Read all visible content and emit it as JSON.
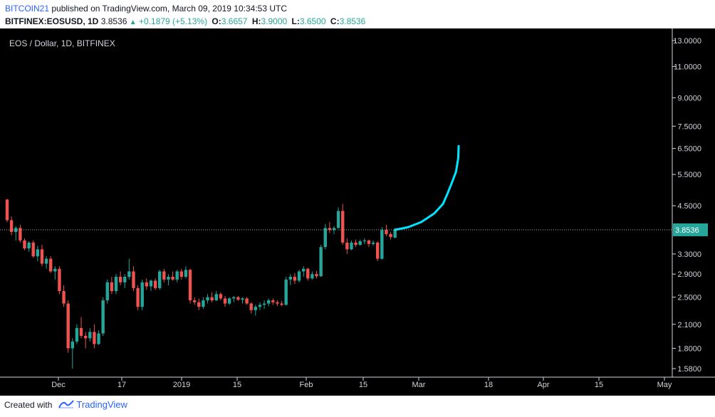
{
  "header": {
    "user": "BITCOIN21",
    "published": "published on TradingView.com, March 09, 2019 10:34:53 UTC",
    "symbol": "BITFINEX:EOSUSD, 1D",
    "last": "3.8536",
    "change": "+0.1879 (+5.13%)",
    "open_label": "O:",
    "open": "3.6657",
    "high_label": "H:",
    "high": "3.9000",
    "low_label": "L:",
    "low": "3.6500",
    "close_label": "C:",
    "close": "3.8536"
  },
  "footer": {
    "created_with": "Created with",
    "brand": "TradingView"
  },
  "colors": {
    "background": "#000000",
    "up": "#26a69a",
    "down": "#ef5350",
    "projection": "#00e5ff",
    "price_tag": "#26a69a",
    "axis_text": "#d1d4dc"
  },
  "icons": {
    "up": "up-arrow-icon",
    "logo": "tradingview-logo-icon"
  },
  "chart_data": {
    "type": "candlestick",
    "title": "EOS / Dollar, 1D, BITFINEX",
    "y_scale": "log",
    "ylim": [
      1.58,
      13.0
    ],
    "y_ticks": [
      "13.0000",
      "11.0000",
      "9.0000",
      "7.5000",
      "6.5000",
      "5.5000",
      "4.5000",
      "3.3000",
      "2.9000",
      "2.5000",
      "2.1000",
      "1.8000",
      "1.5800"
    ],
    "x_ticks": [
      "Dec",
      "17",
      "2019",
      "15",
      "Feb",
      "15",
      "Mar",
      "18",
      "Apr",
      "15",
      "May"
    ],
    "last_price": "3.8536",
    "candles": [
      [
        4.68,
        4.7,
        4.05,
        4.1
      ],
      [
        4.1,
        4.2,
        3.72,
        3.8
      ],
      [
        3.8,
        3.95,
        3.6,
        3.9
      ],
      [
        3.9,
        3.98,
        3.55,
        3.6
      ],
      [
        3.6,
        3.65,
        3.38,
        3.42
      ],
      [
        3.42,
        3.58,
        3.35,
        3.55
      ],
      [
        3.55,
        3.6,
        3.22,
        3.25
      ],
      [
        3.25,
        3.48,
        3.15,
        3.4
      ],
      [
        3.4,
        3.5,
        3.05,
        3.1
      ],
      [
        3.1,
        3.25,
        3.0,
        3.2
      ],
      [
        3.2,
        3.25,
        2.92,
        2.95
      ],
      [
        2.95,
        3.05,
        2.8,
        3.0
      ],
      [
        3.0,
        3.05,
        2.55,
        2.6
      ],
      [
        2.6,
        2.7,
        2.35,
        2.4
      ],
      [
        2.4,
        2.45,
        1.75,
        1.8
      ],
      [
        1.8,
        1.92,
        1.58,
        1.88
      ],
      [
        1.88,
        2.1,
        1.85,
        2.05
      ],
      [
        2.05,
        2.2,
        1.92,
        1.95
      ],
      [
        1.95,
        2.0,
        1.8,
        1.92
      ],
      [
        1.92,
        2.05,
        1.88,
        2.0
      ],
      [
        2.0,
        2.1,
        1.8,
        1.85
      ],
      [
        1.85,
        2.02,
        1.84,
        1.98
      ],
      [
        1.98,
        2.5,
        1.95,
        2.45
      ],
      [
        2.45,
        2.8,
        2.4,
        2.75
      ],
      [
        2.75,
        2.85,
        2.55,
        2.6
      ],
      [
        2.6,
        2.9,
        2.55,
        2.85
      ],
      [
        2.85,
        2.95,
        2.7,
        2.75
      ],
      [
        2.75,
        2.9,
        2.65,
        2.85
      ],
      [
        2.85,
        3.2,
        2.8,
        2.95
      ],
      [
        2.95,
        3.05,
        2.6,
        2.65
      ],
      [
        2.65,
        2.7,
        2.3,
        2.35
      ],
      [
        2.35,
        2.8,
        2.3,
        2.75
      ],
      [
        2.75,
        2.82,
        2.62,
        2.68
      ],
      [
        2.68,
        2.8,
        2.6,
        2.78
      ],
      [
        2.78,
        2.82,
        2.62,
        2.65
      ],
      [
        2.65,
        2.98,
        2.62,
        2.95
      ],
      [
        2.95,
        3.0,
        2.75,
        2.8
      ],
      [
        2.8,
        2.9,
        2.7,
        2.85
      ],
      [
        2.85,
        2.95,
        2.78,
        2.8
      ],
      [
        2.8,
        2.98,
        2.75,
        2.95
      ],
      [
        2.95,
        3.0,
        2.8,
        2.85
      ],
      [
        2.85,
        3.05,
        2.82,
        2.98
      ],
      [
        2.98,
        3.0,
        2.4,
        2.45
      ],
      [
        2.45,
        2.5,
        2.38,
        2.42
      ],
      [
        2.42,
        2.48,
        2.3,
        2.35
      ],
      [
        2.35,
        2.5,
        2.32,
        2.45
      ],
      [
        2.45,
        2.55,
        2.4,
        2.5
      ],
      [
        2.5,
        2.58,
        2.42,
        2.45
      ],
      [
        2.45,
        2.6,
        2.44,
        2.55
      ],
      [
        2.55,
        2.58,
        2.45,
        2.48
      ],
      [
        2.48,
        2.52,
        2.35,
        2.4
      ],
      [
        2.4,
        2.5,
        2.38,
        2.48
      ],
      [
        2.48,
        2.52,
        2.42,
        2.5
      ],
      [
        2.5,
        2.52,
        2.44,
        2.46
      ],
      [
        2.46,
        2.5,
        2.4,
        2.48
      ],
      [
        2.48,
        2.5,
        2.38,
        2.4
      ],
      [
        2.4,
        2.42,
        2.25,
        2.3
      ],
      [
        2.3,
        2.38,
        2.22,
        2.35
      ],
      [
        2.35,
        2.42,
        2.3,
        2.38
      ],
      [
        2.38,
        2.45,
        2.32,
        2.4
      ],
      [
        2.4,
        2.48,
        2.36,
        2.45
      ],
      [
        2.45,
        2.48,
        2.38,
        2.42
      ],
      [
        2.42,
        2.45,
        2.36,
        2.4
      ],
      [
        2.4,
        2.44,
        2.36,
        2.38
      ],
      [
        2.38,
        2.85,
        2.37,
        2.8
      ],
      [
        2.8,
        2.9,
        2.7,
        2.85
      ],
      [
        2.85,
        2.92,
        2.72,
        2.78
      ],
      [
        2.78,
        2.98,
        2.75,
        2.95
      ],
      [
        2.95,
        3.05,
        2.85,
        3.0
      ],
      [
        3.0,
        3.02,
        2.78,
        2.82
      ],
      [
        2.82,
        2.95,
        2.8,
        2.9
      ],
      [
        2.9,
        2.96,
        2.82,
        2.86
      ],
      [
        2.86,
        3.5,
        2.85,
        3.45
      ],
      [
        3.45,
        4.0,
        3.4,
        3.9
      ],
      [
        3.9,
        4.05,
        3.78,
        3.85
      ],
      [
        3.85,
        3.95,
        3.75,
        3.9
      ],
      [
        3.9,
        4.45,
        3.88,
        4.35
      ],
      [
        4.35,
        4.55,
        3.5,
        3.55
      ],
      [
        3.55,
        3.65,
        3.3,
        3.4
      ],
      [
        3.4,
        3.6,
        3.38,
        3.55
      ],
      [
        3.55,
        3.62,
        3.45,
        3.5
      ],
      [
        3.5,
        3.62,
        3.48,
        3.58
      ],
      [
        3.58,
        3.65,
        3.52,
        3.6
      ],
      [
        3.6,
        3.62,
        3.45,
        3.52
      ],
      [
        3.52,
        3.6,
        3.48,
        3.55
      ],
      [
        3.55,
        3.58,
        3.15,
        3.2
      ],
      [
        3.2,
        3.92,
        3.18,
        3.85
      ],
      [
        3.85,
        3.98,
        3.7,
        3.75
      ],
      [
        3.75,
        3.8,
        3.62,
        3.68
      ],
      [
        3.6657,
        3.9,
        3.65,
        3.8536
      ]
    ],
    "projection": [
      [
        0,
        3.8536
      ],
      [
        3,
        3.92
      ],
      [
        6,
        4.05
      ],
      [
        9,
        4.28
      ],
      [
        11,
        4.55
      ],
      [
        12,
        4.85
      ],
      [
        13,
        5.2
      ],
      [
        14,
        5.6
      ],
      [
        14.5,
        6.1
      ],
      [
        14.6,
        6.6
      ]
    ]
  }
}
